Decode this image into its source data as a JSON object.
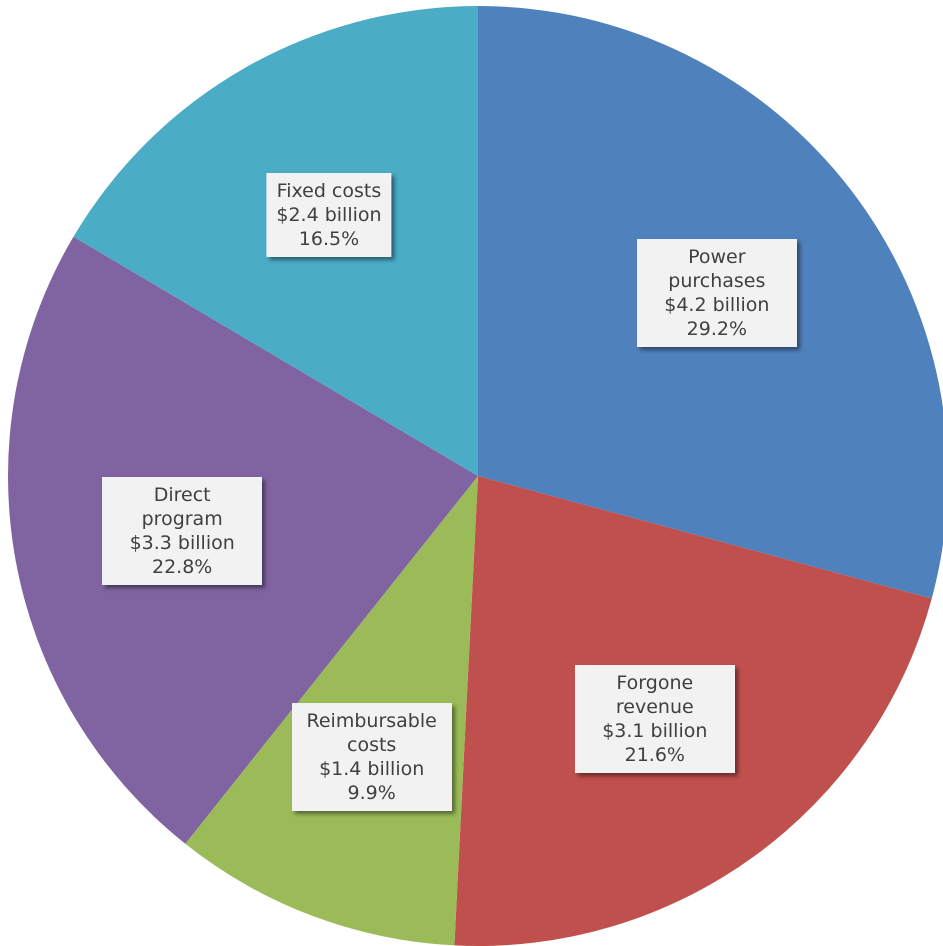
{
  "chart_data": {
    "type": "pie",
    "categories": [
      "Power purchases",
      "Forgone revenue",
      "Reimbursable costs",
      "Direct program",
      "Fixed costs"
    ],
    "values": [
      29.2,
      21.6,
      9.9,
      22.8,
      16.5
    ],
    "value_labels": [
      "29.2%",
      "21.6%",
      "9.9%",
      "22.8%",
      "16.5%"
    ],
    "amount_labels": [
      "$4.2 billion",
      "$3.1 billion",
      "$1.4 billion",
      "$3.3 billion",
      "$2.4 billion"
    ],
    "colors": [
      "#4f81bd",
      "#c0504d",
      "#9bbb59",
      "#8064a2",
      "#4bacc6"
    ]
  }
}
